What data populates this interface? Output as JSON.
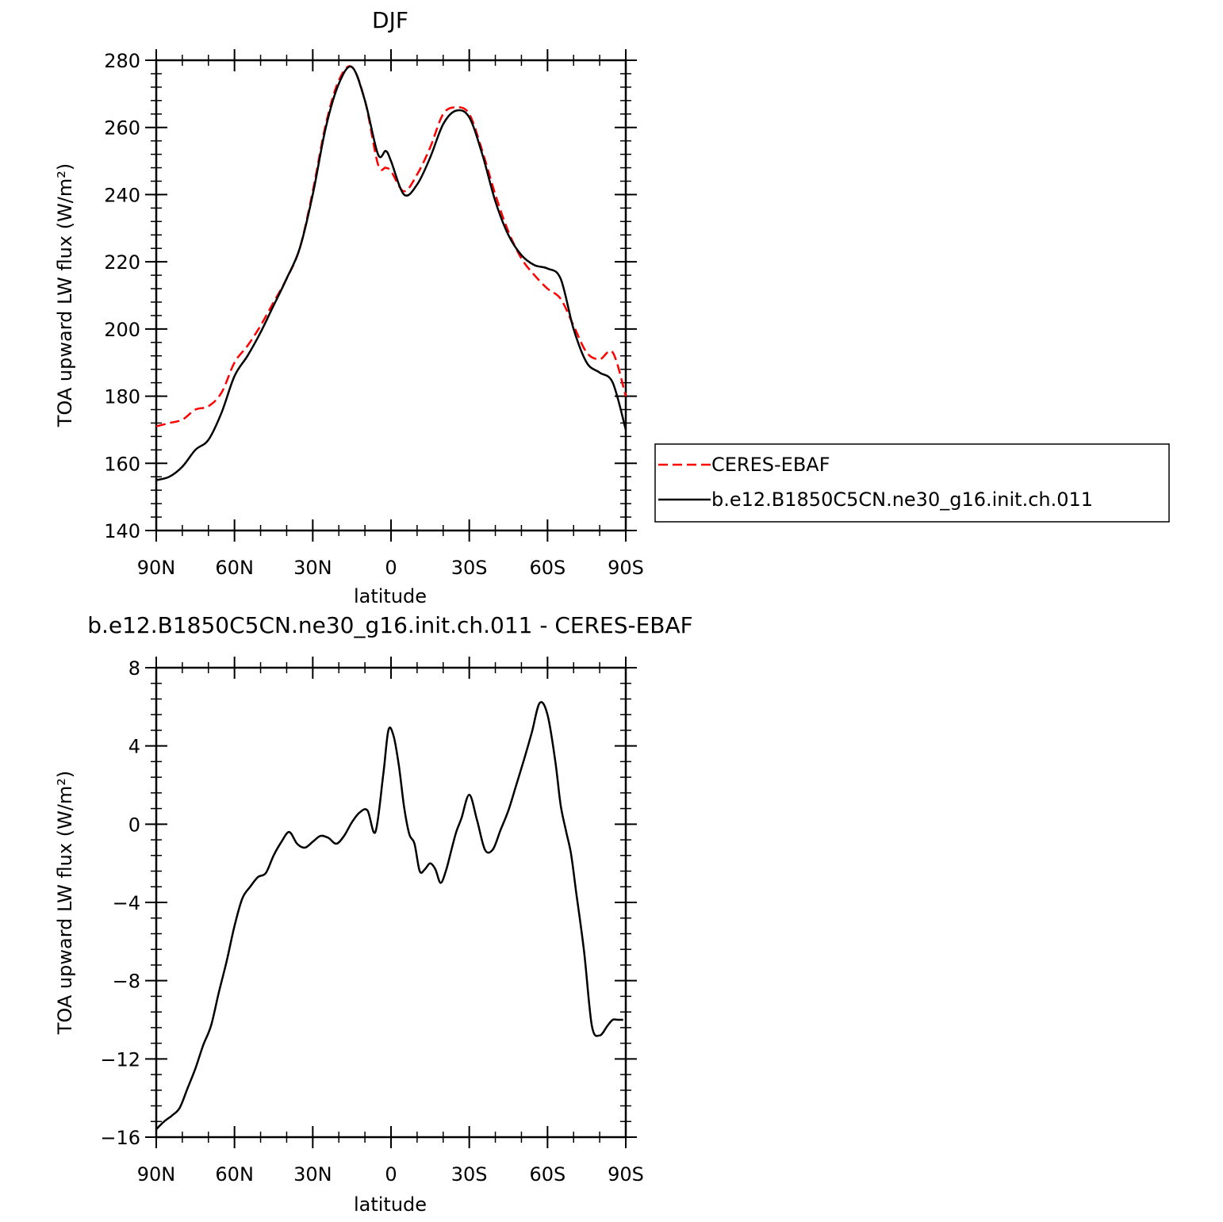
{
  "chart_data": [
    {
      "type": "line",
      "title": "DJF",
      "xlabel": "latitude",
      "ylabel": "TOA upward LW flux (W/m²)",
      "xlim": [
        90,
        -90
      ],
      "ylim": [
        140,
        280
      ],
      "xticks": [
        90,
        60,
        30,
        0,
        -30,
        -60,
        -90
      ],
      "xtick_labels": [
        "90N",
        "60N",
        "30N",
        "0",
        "30S",
        "60S",
        "90S"
      ],
      "yticks": [
        140,
        160,
        180,
        200,
        220,
        240,
        260,
        280
      ],
      "ytick_labels": [
        "140",
        "160",
        "180",
        "200",
        "220",
        "240",
        "260",
        "280"
      ],
      "grid": false,
      "legend_position": "right",
      "series": [
        {
          "name": "CERES-EBAF",
          "color": "#ff0000",
          "dash": "dashed",
          "x": [
            90,
            85,
            80,
            75,
            70,
            65,
            60,
            55,
            50,
            45,
            40,
            35,
            30,
            25,
            20,
            15,
            10,
            5,
            2,
            0,
            -5,
            -10,
            -15,
            -20,
            -25,
            -30,
            -35,
            -40,
            -45,
            -50,
            -55,
            -60,
            -65,
            -70,
            -75,
            -80,
            -85,
            -90
          ],
          "values": [
            171,
            172,
            173,
            176,
            177,
            181,
            190,
            195,
            201,
            208,
            215,
            224,
            241,
            261,
            274,
            278,
            268,
            249,
            248,
            247,
            241,
            246,
            254,
            264,
            266,
            264,
            253,
            240,
            229,
            221,
            216,
            212,
            209,
            201,
            193,
            191,
            193,
            180
          ]
        },
        {
          "name": "b.e12.B1850C5CN.ne30_g16.init.ch.011",
          "color": "#000000",
          "dash": "solid",
          "x": [
            90,
            85,
            80,
            75,
            70,
            65,
            60,
            55,
            50,
            45,
            40,
            35,
            30,
            25,
            20,
            15,
            10,
            5,
            2,
            0,
            -5,
            -10,
            -15,
            -20,
            -25,
            -30,
            -35,
            -40,
            -45,
            -50,
            -55,
            -60,
            -65,
            -70,
            -75,
            -80,
            -85,
            -90
          ],
          "values": [
            155,
            156,
            159,
            164,
            167,
            175,
            186,
            192,
            199,
            207,
            215,
            224,
            240,
            260,
            273,
            278,
            268,
            252,
            253,
            250,
            240,
            243,
            251,
            261,
            265,
            263,
            252,
            238,
            228,
            222,
            219,
            218,
            215,
            200,
            190,
            187,
            184,
            170
          ]
        }
      ]
    },
    {
      "type": "line",
      "title": "b.e12.B1850C5CN.ne30_g16.init.ch.011 - CERES-EBAF",
      "xlabel": "latitude",
      "ylabel": "TOA upward LW flux (W/m²)",
      "xlim": [
        90,
        -90
      ],
      "ylim": [
        -16,
        8
      ],
      "xticks": [
        90,
        60,
        30,
        0,
        -30,
        -60,
        -90
      ],
      "xtick_labels": [
        "90N",
        "60N",
        "30N",
        "0",
        "30S",
        "60S",
        "90S"
      ],
      "yticks": [
        -16,
        -12,
        -8,
        -4,
        0,
        4,
        8
      ],
      "ytick_labels": [
        "−16",
        "−12",
        "−8",
        "−4",
        "0",
        "4",
        "8"
      ],
      "grid": false,
      "series": [
        {
          "color": "#000000",
          "dash": "solid",
          "x": [
            90,
            87,
            84,
            81,
            78,
            75,
            72,
            69,
            66,
            63,
            60,
            57,
            54,
            51,
            48,
            45,
            42,
            39,
            36,
            33,
            30,
            27,
            24,
            21,
            18,
            15,
            12,
            9,
            6,
            3,
            1,
            -1,
            -3,
            -5,
            -7,
            -9,
            -11,
            -13,
            -15,
            -17,
            -19,
            -21,
            -23,
            -25,
            -27,
            -30,
            -33,
            -36,
            -39,
            -42,
            -45,
            -48,
            -51,
            -54,
            -57,
            -60,
            -63,
            -65,
            -67,
            -69,
            -71,
            -74,
            -77,
            -80,
            -83,
            -85,
            -87,
            -89
          ],
          "values": [
            -15.6,
            -15.2,
            -14.9,
            -14.5,
            -13.5,
            -12.5,
            -11.3,
            -10.3,
            -8.6,
            -7.0,
            -5.2,
            -3.8,
            -3.2,
            -2.7,
            -2.5,
            -1.6,
            -0.9,
            -0.4,
            -1.0,
            -1.2,
            -0.9,
            -0.6,
            -0.7,
            -1.0,
            -0.6,
            0.1,
            0.6,
            0.7,
            -0.4,
            2.5,
            4.8,
            4.5,
            3.0,
            0.9,
            -0.5,
            -1.0,
            -2.4,
            -2.3,
            -2.0,
            -2.3,
            -3.0,
            -2.4,
            -1.4,
            -0.4,
            0.3,
            1.5,
            0.2,
            -1.3,
            -1.3,
            -0.3,
            0.7,
            2.0,
            3.3,
            4.7,
            6.2,
            5.6,
            3.2,
            1.0,
            -0.3,
            -1.5,
            -3.5,
            -6.5,
            -10.3,
            -10.8,
            -10.3,
            -10.0,
            -10.0,
            -10.0
          ]
        }
      ]
    }
  ]
}
